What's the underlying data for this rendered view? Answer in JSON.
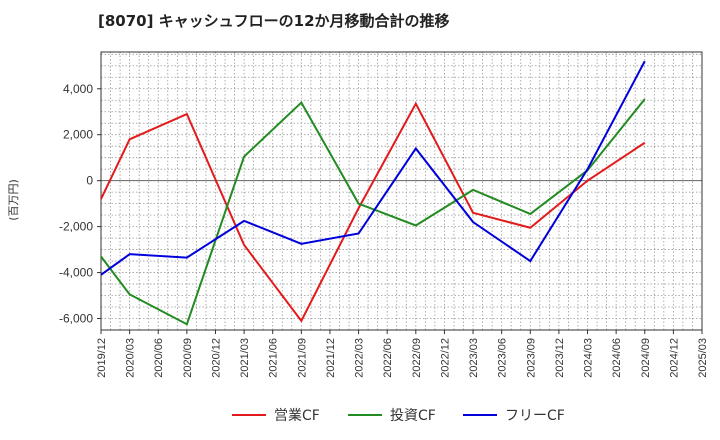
{
  "chart_data": {
    "type": "line",
    "title": "[8070]  キャッシュフローの12か月移動合計の推移",
    "ylabel": "(百万円)",
    "xlabel": "",
    "ylim": [
      -6500,
      5600
    ],
    "yticks": [
      4000,
      2000,
      0,
      -2000,
      -4000,
      -6000
    ],
    "ytick_labels": [
      "4,000",
      "2,000",
      "0",
      "-2,000",
      "-4,000",
      "-6,000"
    ],
    "categories": [
      "2019/12",
      "2020/03",
      "2020/06",
      "2020/09",
      "2020/12",
      "2021/03",
      "2021/06",
      "2021/09",
      "2021/12",
      "2022/03",
      "2022/06",
      "2022/09",
      "2022/12",
      "2023/03",
      "2023/06",
      "2023/09",
      "2023/12",
      "2024/03",
      "2024/06",
      "2024/09",
      "2024/12",
      "2025/03"
    ],
    "grid": true,
    "legend_position": "bottom",
    "series": [
      {
        "name": "営業CF",
        "color": "#e31a1c",
        "points": [
          {
            "x": "2019/12",
            "y": -800
          },
          {
            "x": "2020/03",
            "y": 1800
          },
          {
            "x": "2020/09",
            "y": 2900
          },
          {
            "x": "2021/03",
            "y": -2800
          },
          {
            "x": "2021/09",
            "y": -6100
          },
          {
            "x": "2022/03",
            "y": -1200
          },
          {
            "x": "2022/09",
            "y": 3350
          },
          {
            "x": "2023/03",
            "y": -1400
          },
          {
            "x": "2023/09",
            "y": -2050
          },
          {
            "x": "2024/03",
            "y": 0
          },
          {
            "x": "2024/09",
            "y": 1650
          }
        ]
      },
      {
        "name": "投資CF",
        "color": "#228b22",
        "points": [
          {
            "x": "2019/12",
            "y": -3300
          },
          {
            "x": "2020/03",
            "y": -4950
          },
          {
            "x": "2020/09",
            "y": -6250
          },
          {
            "x": "2021/03",
            "y": 1050
          },
          {
            "x": "2021/09",
            "y": 3400
          },
          {
            "x": "2022/03",
            "y": -1000
          },
          {
            "x": "2022/09",
            "y": -1950
          },
          {
            "x": "2023/03",
            "y": -400
          },
          {
            "x": "2023/09",
            "y": -1450
          },
          {
            "x": "2024/03",
            "y": 450
          },
          {
            "x": "2024/09",
            "y": 3550
          }
        ]
      },
      {
        "name": "フリーCF",
        "color": "#0000dd",
        "points": [
          {
            "x": "2019/12",
            "y": -4100
          },
          {
            "x": "2020/03",
            "y": -3200
          },
          {
            "x": "2020/09",
            "y": -3350
          },
          {
            "x": "2021/03",
            "y": -1750
          },
          {
            "x": "2021/09",
            "y": -2750
          },
          {
            "x": "2022/03",
            "y": -2300
          },
          {
            "x": "2022/09",
            "y": 1400
          },
          {
            "x": "2023/03",
            "y": -1800
          },
          {
            "x": "2023/09",
            "y": -3500
          },
          {
            "x": "2024/03",
            "y": 500
          },
          {
            "x": "2024/09",
            "y": 5200
          }
        ]
      }
    ]
  }
}
